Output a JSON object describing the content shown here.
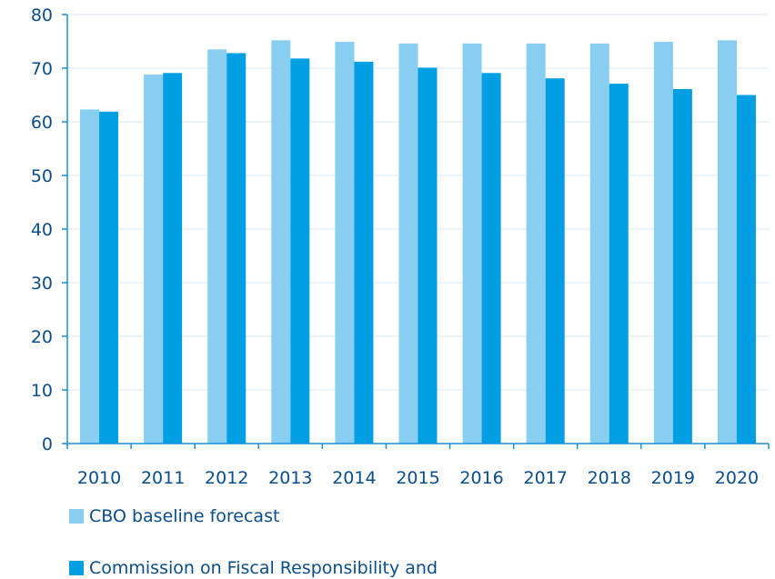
{
  "chart_data": {
    "type": "bar",
    "categories": [
      "2010",
      "2011",
      "2012",
      "2013",
      "2014",
      "2015",
      "2016",
      "2017",
      "2018",
      "2019",
      "2020"
    ],
    "series": [
      {
        "name": "CBO baseline forecast",
        "color": "#87cef0",
        "values": [
          62.3,
          68.8,
          73.5,
          75.2,
          74.9,
          74.6,
          74.6,
          74.6,
          74.6,
          74.9,
          75.2
        ]
      },
      {
        "name": "Commission on Fiscal Responsibility and",
        "color": "#009fe3",
        "values": [
          61.9,
          69.1,
          72.8,
          71.8,
          71.2,
          70.1,
          69.1,
          68.1,
          67.1,
          66.1,
          65.0
        ]
      }
    ],
    "yticks": [
      "0",
      "10",
      "20",
      "30",
      "40",
      "50",
      "60",
      "70",
      "80"
    ],
    "ylim": [
      0,
      80
    ],
    "grid": true,
    "legend_position": "bottom-left",
    "axis_color": "#1a8fd6",
    "grid_color": "#d9e7f3"
  }
}
